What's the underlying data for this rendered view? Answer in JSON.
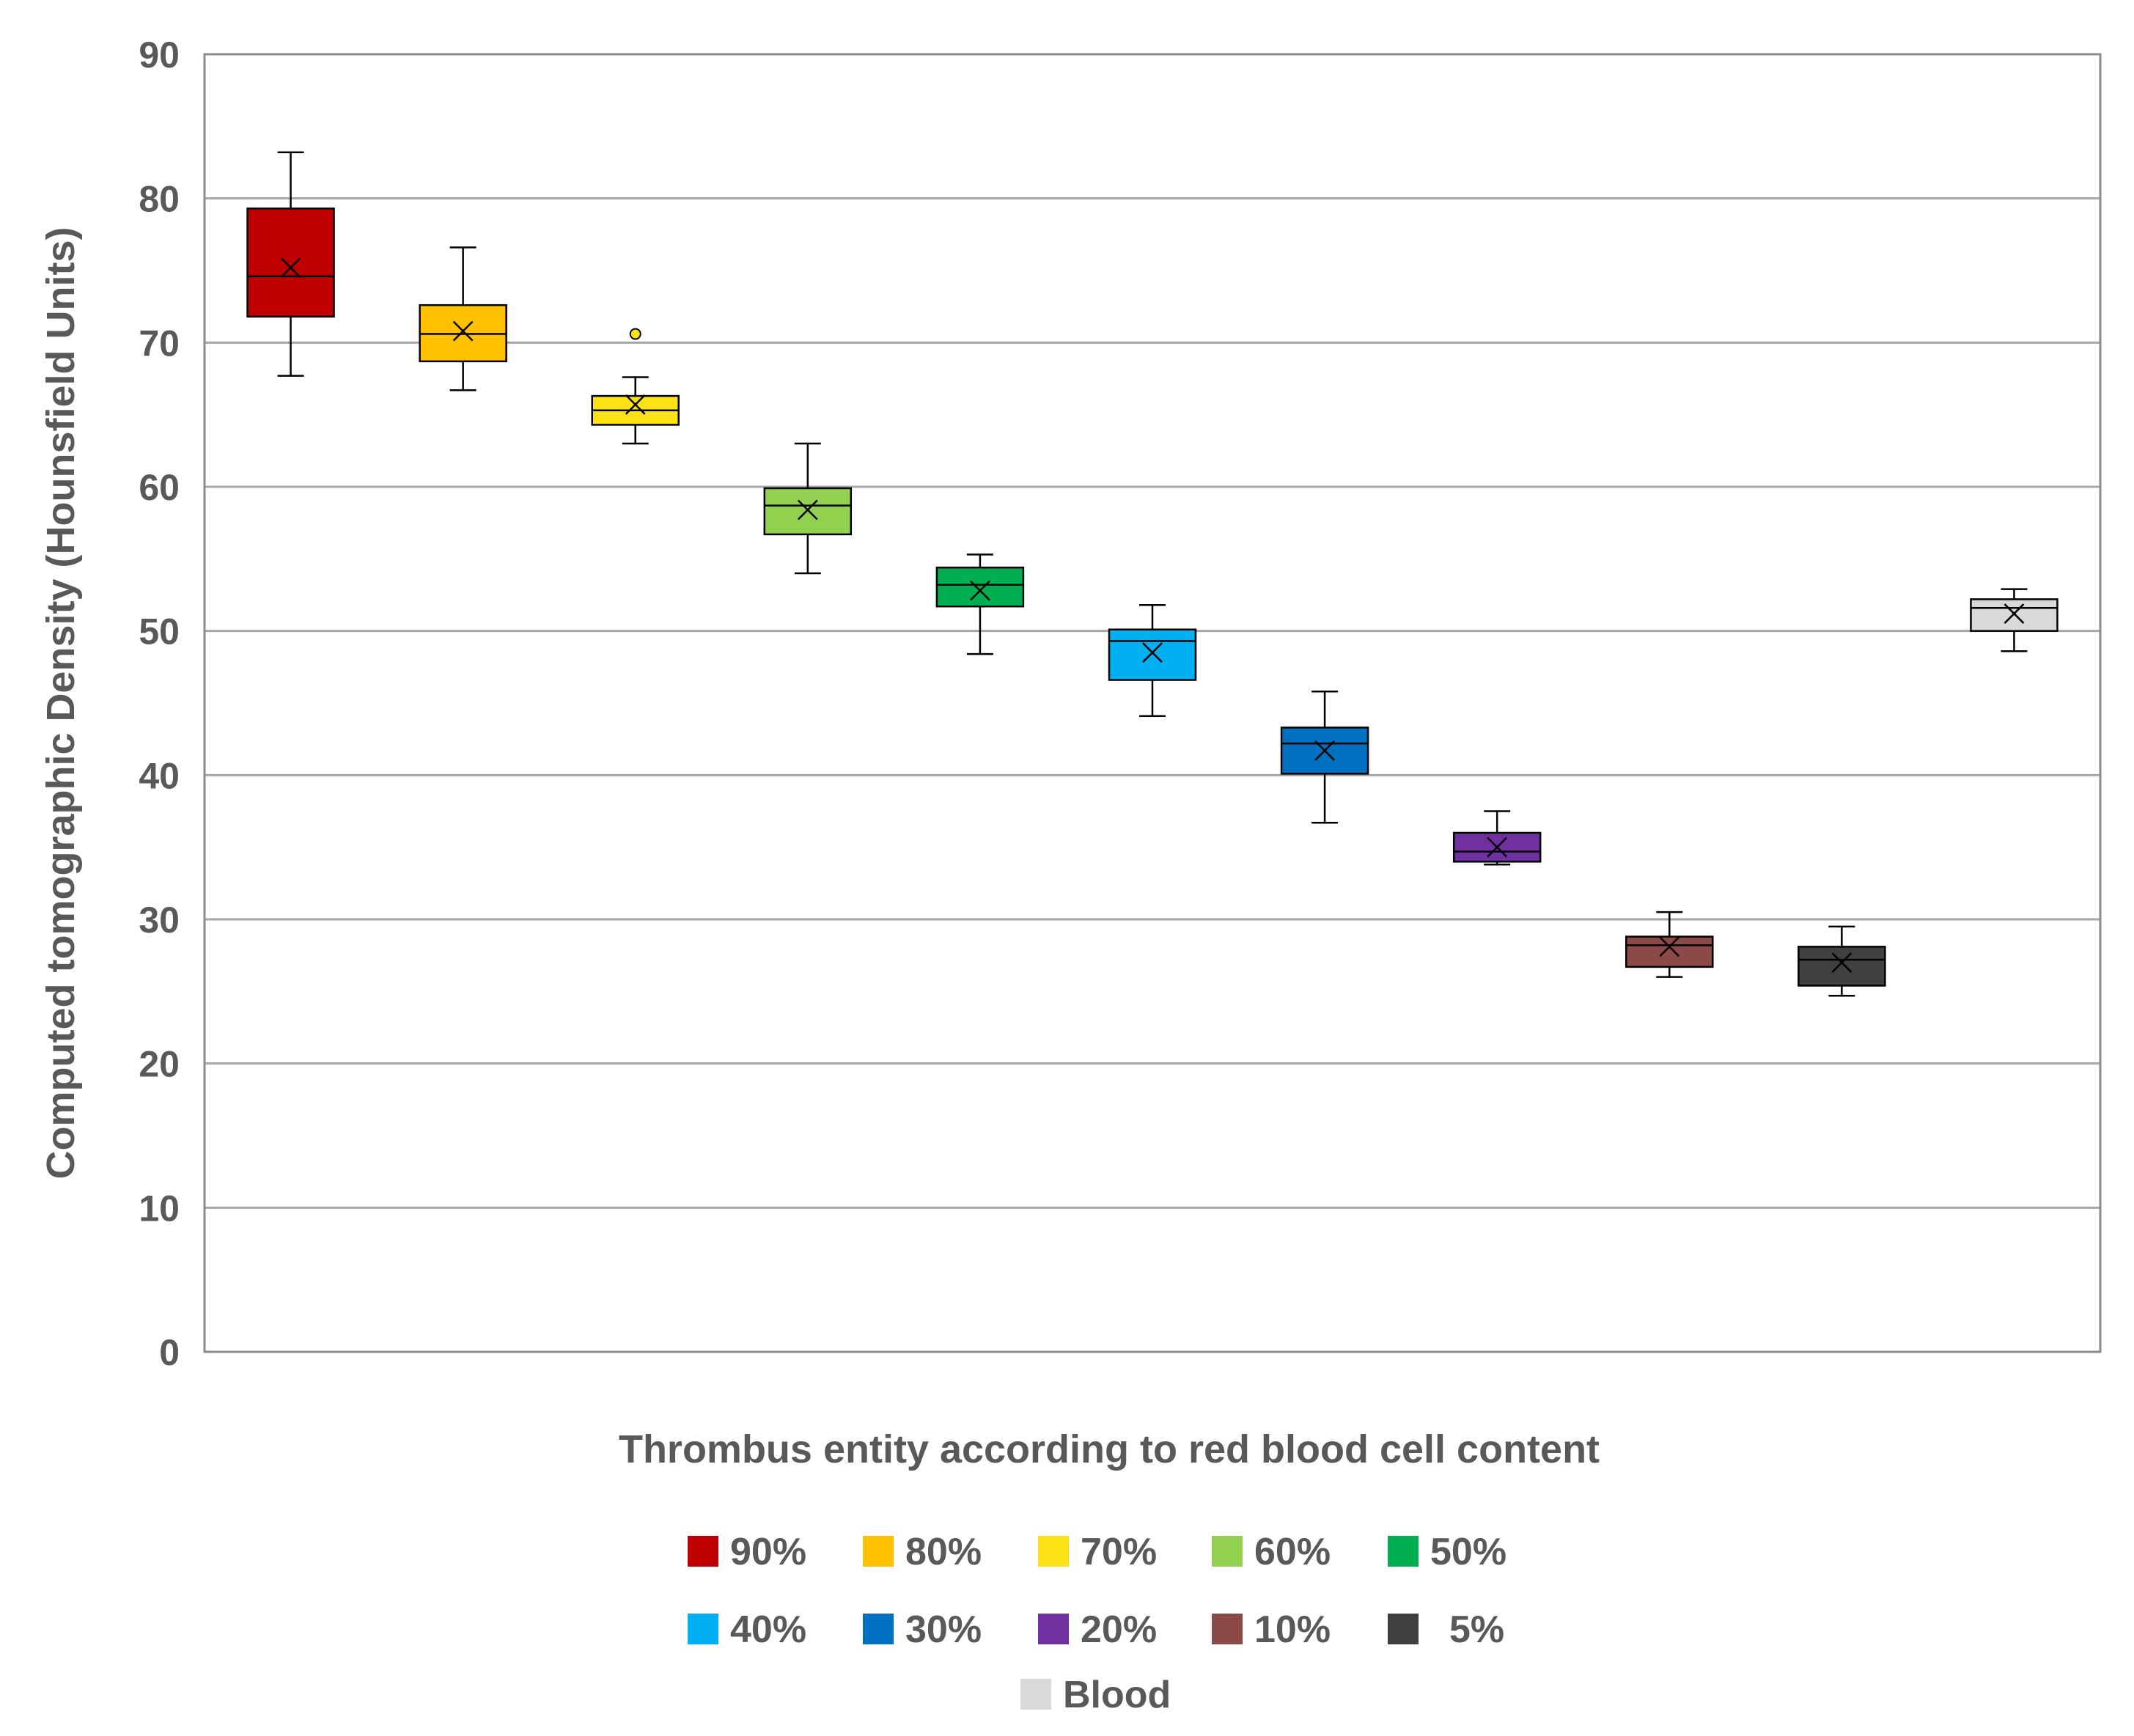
{
  "chart_data": {
    "type": "box",
    "title": "",
    "xlabel": "Thrombus entity according to red blood cell content",
    "ylabel": "Computed tomographic Density (Hounsfield Units)",
    "ylim": [
      0,
      90
    ],
    "yticks": [
      0,
      10,
      20,
      30,
      40,
      50,
      60,
      70,
      80,
      90
    ],
    "grid": true,
    "legend_position": "bottom",
    "series": [
      {
        "name": "90%",
        "color": "#C00000",
        "min": 67.7,
        "q1": 71.8,
        "median": 74.6,
        "q3": 79.3,
        "max": 83.2,
        "mean": 75.2,
        "outliers": []
      },
      {
        "name": "80%",
        "color": "#FFC000",
        "min": 66.7,
        "q1": 68.7,
        "median": 70.6,
        "q3": 72.6,
        "max": 76.6,
        "mean": 70.8,
        "outliers": []
      },
      {
        "name": "70%",
        "color": "#FFE216",
        "min": 63.0,
        "q1": 64.3,
        "median": 65.3,
        "q3": 66.3,
        "max": 67.6,
        "mean": 65.7,
        "outliers": [
          70.6
        ]
      },
      {
        "name": "60%",
        "color": "#92D050",
        "min": 54.0,
        "q1": 56.7,
        "median": 58.7,
        "q3": 59.9,
        "max": 63.0,
        "mean": 58.4,
        "outliers": []
      },
      {
        "name": "50%",
        "color": "#00B050",
        "min": 48.4,
        "q1": 51.7,
        "median": 53.2,
        "q3": 54.4,
        "max": 55.3,
        "mean": 52.8,
        "outliers": []
      },
      {
        "name": "40%",
        "color": "#00B0F0",
        "min": 44.1,
        "q1": 46.6,
        "median": 49.3,
        "q3": 50.1,
        "max": 51.8,
        "mean": 48.5,
        "outliers": []
      },
      {
        "name": "30%",
        "color": "#0070C0",
        "min": 36.7,
        "q1": 40.1,
        "median": 42.2,
        "q3": 43.3,
        "max": 45.8,
        "mean": 41.7,
        "outliers": []
      },
      {
        "name": "20%",
        "color": "#7030A0",
        "min": 33.8,
        "q1": 34.0,
        "median": 34.7,
        "q3": 36.0,
        "max": 37.5,
        "mean": 35.0,
        "outliers": []
      },
      {
        "name": "10%",
        "color": "#8B4A47",
        "min": 26.0,
        "q1": 26.7,
        "median": 28.2,
        "q3": 28.8,
        "max": 30.5,
        "mean": 28.1,
        "outliers": []
      },
      {
        "name": "5%",
        "color": "#404040",
        "min": 24.7,
        "q1": 25.4,
        "median": 27.2,
        "q3": 28.1,
        "max": 29.5,
        "mean": 27.0,
        "outliers": []
      },
      {
        "name": "Blood",
        "color": "#D9D9D9",
        "min": 48.6,
        "q1": 50.0,
        "median": 51.6,
        "q3": 52.2,
        "max": 52.9,
        "mean": 51.2,
        "outliers": []
      }
    ]
  }
}
